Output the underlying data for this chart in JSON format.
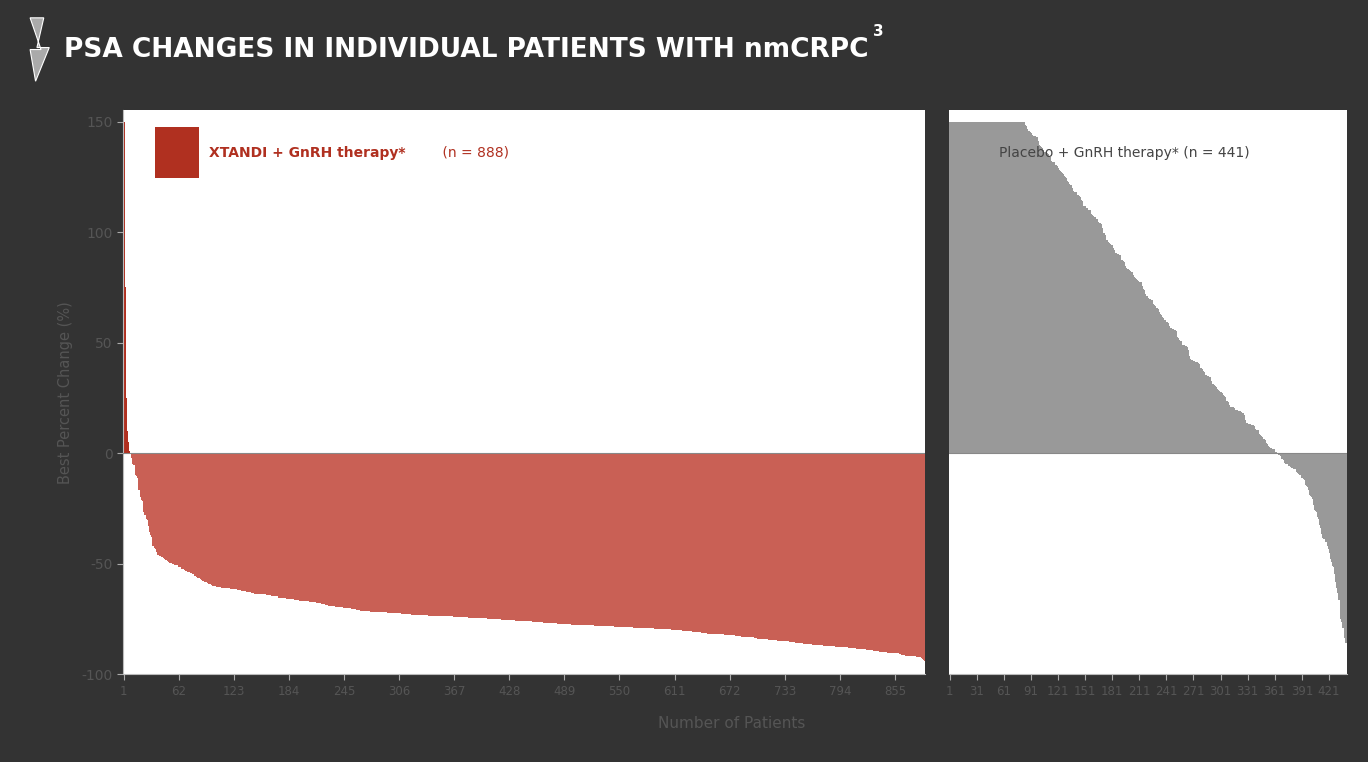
{
  "title_main": "PSA CHANGES IN INDIVIDUAL PATIENTS WITH nmCRPC",
  "title_superscript": "3",
  "title_bg_color": "#666666",
  "title_text_color": "#ffffff",
  "white_bg": "#ffffff",
  "xtandi_n": 888,
  "placebo_n": 441,
  "xtandi_label_bold": "XTANDI + GnRH therapy*",
  "xtandi_label_normal": " (n = 888)",
  "placebo_label": "Placebo + GnRH therapy* (n = 441)",
  "xtandi_legend_color": "#b03020",
  "xtandi_bar_color_pos": "#b03020",
  "xtandi_bar_color_neg": "#c96055",
  "placebo_bar_color": "#999999",
  "ylabel": "Best Percent Change (%)",
  "xlabel": "Number of Patients",
  "ylim_min": -100,
  "ylim_max": 155,
  "yticks": [
    -100,
    -50,
    0,
    50,
    100,
    150
  ],
  "xtandi_xticks": [
    1,
    62,
    123,
    184,
    245,
    306,
    367,
    428,
    489,
    550,
    611,
    672,
    733,
    794,
    855
  ],
  "placebo_xticks": [
    1,
    31,
    61,
    91,
    121,
    151,
    181,
    211,
    241,
    271,
    301,
    331,
    361,
    391,
    421
  ],
  "outer_bg": "#333333",
  "inner_bg": "#f0f0f0"
}
